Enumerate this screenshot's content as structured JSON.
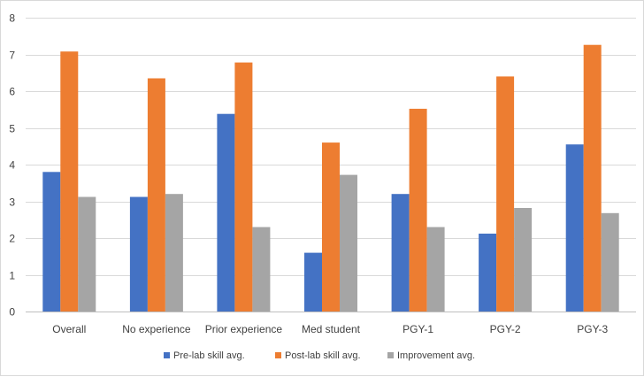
{
  "chart_data": {
    "type": "bar",
    "categories": [
      "Overall",
      "No experience",
      "Prior experience",
      "Med student",
      "PGY-1",
      "PGY-2",
      "PGY-3"
    ],
    "series": [
      {
        "name": "Pre-lab skill avg.",
        "color": "#4472c4",
        "values": [
          3.8,
          3.12,
          5.38,
          1.6,
          3.2,
          2.12,
          4.55
        ]
      },
      {
        "name": "Post-lab skill avg.",
        "color": "#ed7d31",
        "values": [
          7.08,
          6.35,
          6.78,
          4.6,
          5.52,
          6.4,
          7.26
        ]
      },
      {
        "name": "Improvement avg.",
        "color": "#a5a5a5",
        "values": [
          3.12,
          3.2,
          2.3,
          3.72,
          2.3,
          2.82,
          2.68
        ]
      }
    ],
    "title": "",
    "xlabel": "",
    "ylabel": "",
    "ylim": [
      0,
      8
    ],
    "yticks": [
      "0",
      "1",
      "2",
      "3",
      "4",
      "5",
      "6",
      "7",
      "8"
    ],
    "grid": true,
    "legend_position": "bottom",
    "gridline_color": "#d9d9d9"
  }
}
